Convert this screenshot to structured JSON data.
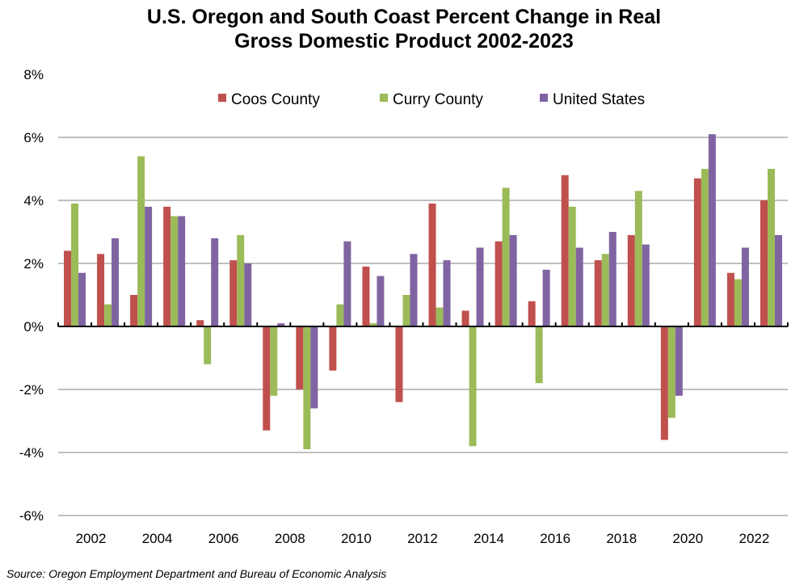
{
  "chart_data": {
    "type": "bar",
    "title_line1": "U.S. Oregon and South Coast Percent Change in Real",
    "title_line2": "Gross Domestic Product 2002-2023",
    "xlabel": "",
    "ylabel": "",
    "ylim": [
      -6,
      8
    ],
    "yticks": [
      -6,
      -4,
      -2,
      0,
      2,
      4,
      6,
      8
    ],
    "ytick_labels": [
      "-6%",
      "-4%",
      "-2%",
      "0%",
      "2%",
      "4%",
      "6%",
      "8%"
    ],
    "categories": [
      2002,
      2003,
      2004,
      2005,
      2006,
      2007,
      2008,
      2009,
      2010,
      2011,
      2012,
      2013,
      2014,
      2015,
      2016,
      2017,
      2018,
      2019,
      2020,
      2021,
      2022,
      2023
    ],
    "xtick_labels": [
      "2002",
      "2004",
      "2006",
      "2008",
      "2010",
      "2012",
      "2014",
      "2016",
      "2018",
      "2020",
      "2022"
    ],
    "grid": true,
    "legend_position": "top",
    "series": [
      {
        "name": "Coos County",
        "color": "#c0504d",
        "values": [
          2.4,
          2.3,
          1.0,
          3.8,
          0.2,
          2.1,
          -3.3,
          -2.0,
          -1.4,
          1.9,
          -2.4,
          3.9,
          0.5,
          2.7,
          0.8,
          4.8,
          2.1,
          2.9,
          -3.6,
          4.7,
          1.7,
          4.0
        ]
      },
      {
        "name": "Curry County",
        "color": "#9bbb59",
        "values": [
          3.9,
          0.7,
          5.4,
          3.5,
          -1.2,
          2.9,
          -2.2,
          -3.9,
          0.7,
          0.1,
          1.0,
          0.6,
          -3.8,
          4.4,
          -1.8,
          3.8,
          2.3,
          4.3,
          -2.9,
          5.0,
          1.5,
          5.0
        ]
      },
      {
        "name": "United States",
        "color": "#8064a2",
        "values": [
          1.7,
          2.8,
          3.8,
          3.5,
          2.8,
          2.0,
          0.1,
          -2.6,
          2.7,
          1.6,
          2.3,
          2.1,
          2.5,
          2.9,
          1.8,
          2.5,
          3.0,
          2.6,
          -2.2,
          6.1,
          2.5,
          2.9
        ]
      }
    ],
    "source": "Source: Oregon Employment Department and Bureau of Economic Analysis"
  }
}
